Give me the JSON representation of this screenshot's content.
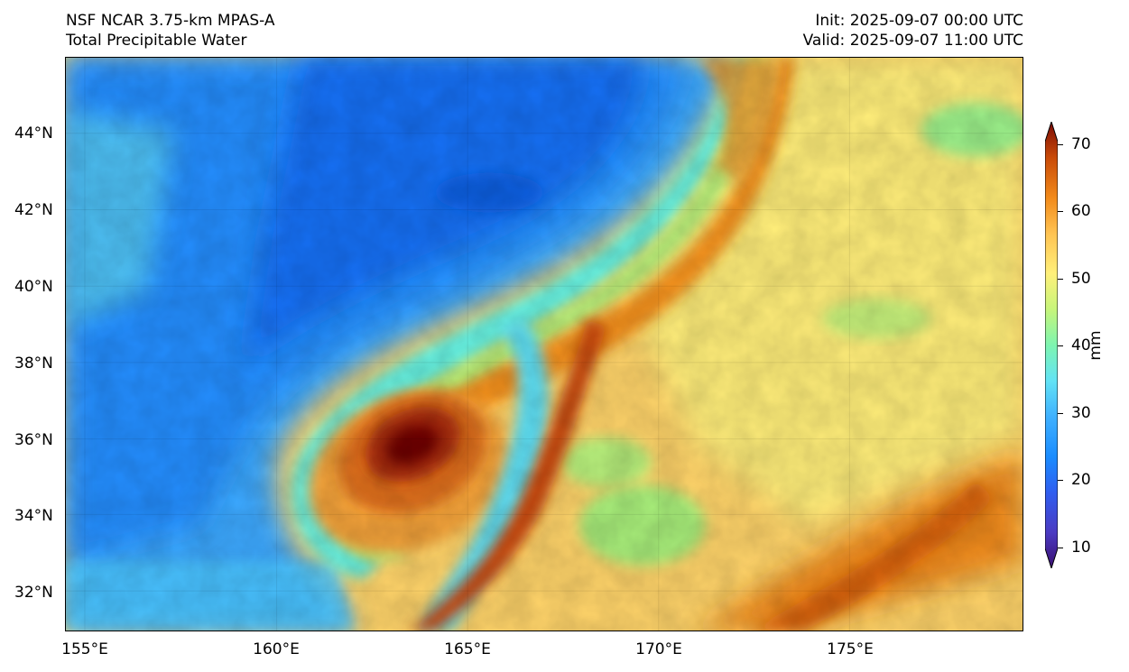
{
  "header": {
    "model": "NSF NCAR 3.75-km MPAS-A",
    "field": "Total Precipitable Water",
    "init": "Init: 2025-09-07 00:00 UTC",
    "valid": "Valid: 2025-09-07 11:00 UTC"
  },
  "map": {
    "lat_labels": [
      "44°N",
      "42°N",
      "40°N",
      "38°N",
      "36°N",
      "34°N",
      "32°N"
    ],
    "lon_labels": [
      "155°E",
      "160°E",
      "165°E",
      "170°E",
      "175°E"
    ],
    "extent": {
      "lon_min": 154.5,
      "lon_max": 179.5,
      "lat_min": 31.0,
      "lat_max": 46.0
    }
  },
  "colorbar": {
    "unit": "mm",
    "ticks": [
      "70",
      "60",
      "50",
      "40",
      "30",
      "20",
      "10"
    ],
    "range": [
      10,
      70
    ],
    "colors": [
      "#3b0f70",
      "#4b3ac2",
      "#2f5ef0",
      "#1a8cff",
      "#3fb1ff",
      "#62e3f5",
      "#7ef5b0",
      "#c7f57a",
      "#fff07a",
      "#ffc352",
      "#f28a1a",
      "#c94a08",
      "#7a0a06"
    ]
  }
}
